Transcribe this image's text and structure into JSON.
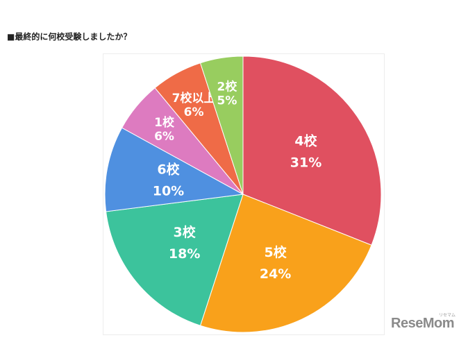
{
  "heading": "■最終的に何校受験しましたか？",
  "chart_data": {
    "type": "pie",
    "title": "",
    "slices": [
      {
        "label": "4校",
        "value": 31,
        "percent_label": "31%",
        "color": "#e05060"
      },
      {
        "label": "5校",
        "value": 24,
        "percent_label": "24%",
        "color": "#f9a11b"
      },
      {
        "label": "3校",
        "value": 18,
        "percent_label": "18%",
        "color": "#3cc39c"
      },
      {
        "label": "6校",
        "value": 10,
        "percent_label": "10%",
        "color": "#4f90e0"
      },
      {
        "label": "1校",
        "value": 6,
        "percent_label": "6%",
        "color": "#dd7bc0"
      },
      {
        "label": "7校以上",
        "value": 6,
        "percent_label": "6%",
        "color": "#ef6b47"
      },
      {
        "label": "2校",
        "value": 5,
        "percent_label": "5%",
        "color": "#98cd5f"
      }
    ],
    "start": "top",
    "direction": "clockwise"
  },
  "watermark": {
    "logo": "ReseMom",
    "sub": "リセマム"
  }
}
